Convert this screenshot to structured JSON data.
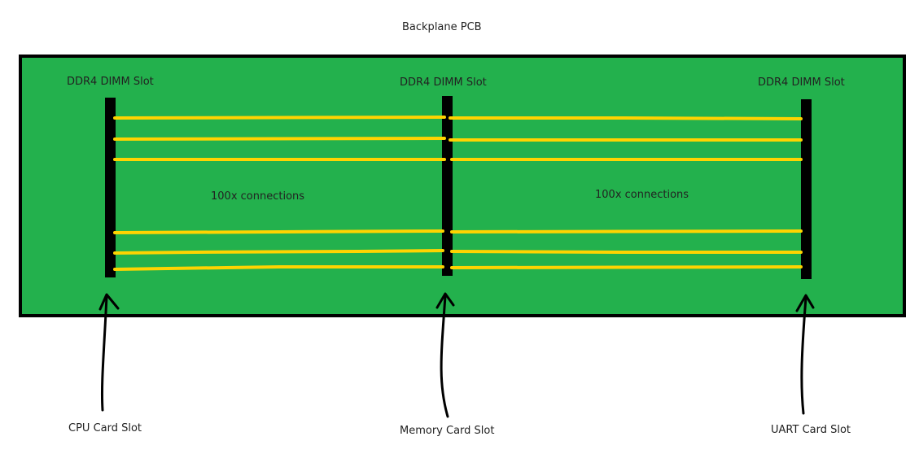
{
  "title": "Backplane PCB",
  "slot_type_label": "DDR4 DIMM Slot",
  "connections": [
    "100x connections",
    "100x connections"
  ],
  "card_slots": [
    "CPU Card Slot",
    "Memory Card Slot",
    "UART Card Slot"
  ],
  "colors": {
    "pcb": "#23b14d",
    "trace": "#ffd400",
    "slot": "#000000",
    "outline": "#000000"
  }
}
